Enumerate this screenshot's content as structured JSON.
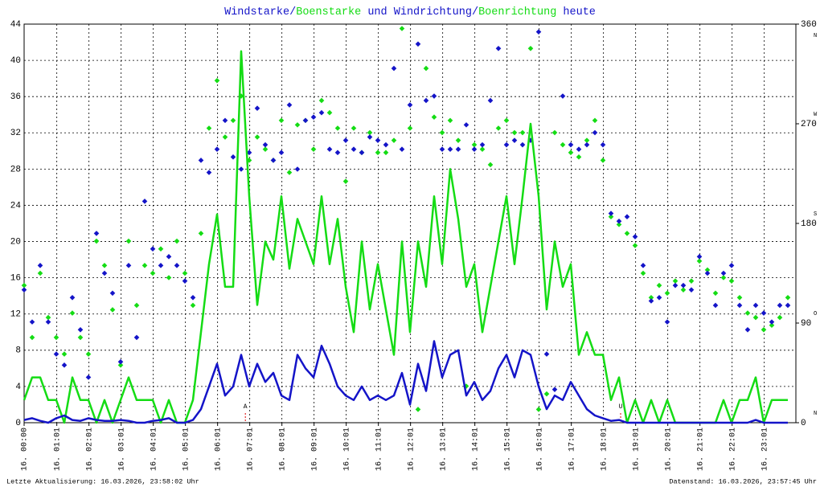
{
  "chart_data": {
    "type": "line",
    "title_parts": [
      {
        "text": "Windstarke/",
        "color": "#1414c8"
      },
      {
        "text": "Boenstarke",
        "color": "#14dc14"
      },
      {
        "text": " und ",
        "color": "#1414c8"
      },
      {
        "text": "Windrichtung/",
        "color": "#1414c8"
      },
      {
        "text": "Boenrichtung",
        "color": "#14dc14"
      },
      {
        "text": " heute",
        "color": "#1414c8"
      }
    ],
    "footer_left": "Letzte Aktualisierung: 16.03.2026, 23:58:02 Uhr",
    "footer_right": "Datenstand: 16.03.2026, 23:57:45 Uhr",
    "xlim": [
      0,
      24
    ],
    "xticks": [
      {
        "value": 0,
        "label": "16. 00:00"
      },
      {
        "value": 1.0167,
        "label": "16. 01:01"
      },
      {
        "value": 2.0167,
        "label": "16. 02:01"
      },
      {
        "value": 3.0167,
        "label": "16. 03:01"
      },
      {
        "value": 4.0167,
        "label": "16. 04:01"
      },
      {
        "value": 5.0167,
        "label": "16. 05:01"
      },
      {
        "value": 6.0167,
        "label": "16. 06:01"
      },
      {
        "value": 7.0167,
        "label": "16. 07:01"
      },
      {
        "value": 8.0167,
        "label": "16. 08:01"
      },
      {
        "value": 9.0167,
        "label": "16. 09:01"
      },
      {
        "value": 10.0167,
        "label": "16. 10:01"
      },
      {
        "value": 11.0167,
        "label": "16. 11:01"
      },
      {
        "value": 12.0167,
        "label": "16. 12:01"
      },
      {
        "value": 13.0167,
        "label": "16. 13:01"
      },
      {
        "value": 14.0167,
        "label": "16. 14:01"
      },
      {
        "value": 15.0167,
        "label": "16. 15:01"
      },
      {
        "value": 16.0167,
        "label": "16. 16:01"
      },
      {
        "value": 17.0167,
        "label": "16. 17:01"
      },
      {
        "value": 18.0167,
        "label": "16. 18:01"
      },
      {
        "value": 19.0167,
        "label": "16. 19:01"
      },
      {
        "value": 20.0167,
        "label": "16. 20:01"
      },
      {
        "value": 21.0167,
        "label": "16. 21:01"
      },
      {
        "value": 22.0167,
        "label": "16. 22:01"
      },
      {
        "value": 23.0167,
        "label": "16. 23:01"
      }
    ],
    "ylim": [
      0,
      44
    ],
    "yticks": [
      0,
      4,
      8,
      12,
      16,
      20,
      24,
      28,
      32,
      36,
      40,
      44
    ],
    "y2lim": [
      0,
      360
    ],
    "y2ticks": [
      0,
      90,
      180,
      270,
      360
    ],
    "y2tick_letters": [
      "N",
      "O",
      "S",
      "W",
      "N"
    ],
    "grid": true,
    "annotations": [
      {
        "x": 6.88,
        "label": "A",
        "color": "#dd0000"
      },
      {
        "x": 18.55,
        "label": "U",
        "color": "#dd0000"
      }
    ],
    "x": [
      0,
      0.25,
      0.5,
      0.75,
      1,
      1.25,
      1.5,
      1.75,
      2,
      2.25,
      2.5,
      2.75,
      3,
      3.25,
      3.5,
      3.75,
      4,
      4.25,
      4.5,
      4.75,
      5,
      5.25,
      5.5,
      5.75,
      6,
      6.25,
      6.5,
      6.75,
      7,
      7.25,
      7.5,
      7.75,
      8,
      8.25,
      8.5,
      8.75,
      9,
      9.25,
      9.5,
      9.75,
      10,
      10.25,
      10.5,
      10.75,
      11,
      11.25,
      11.5,
      11.75,
      12,
      12.25,
      12.5,
      12.75,
      13,
      13.25,
      13.5,
      13.75,
      14,
      14.25,
      14.5,
      14.75,
      15,
      15.25,
      15.5,
      15.75,
      16,
      16.25,
      16.5,
      16.75,
      17,
      17.25,
      17.5,
      17.75,
      18,
      18.25,
      18.5,
      18.75,
      19,
      19.25,
      19.5,
      19.75,
      20,
      20.25,
      20.5,
      20.75,
      21,
      21.25,
      21.5,
      21.75,
      22,
      22.25,
      22.5,
      22.75,
      23,
      23.25,
      23.5,
      23.75
    ],
    "series": [
      {
        "style": "line",
        "color": "#14dc14",
        "values": [
          2.5,
          5,
          5,
          2.5,
          2.5,
          0,
          5,
          2.5,
          2.5,
          0,
          2.5,
          0,
          2.5,
          5,
          2.5,
          2.5,
          2.5,
          0,
          2.5,
          0,
          0,
          2.5,
          10,
          17.5,
          23,
          15,
          15,
          41,
          25,
          13,
          20,
          18,
          25,
          17,
          22.5,
          20,
          17.5,
          25,
          17.5,
          22.5,
          15,
          10,
          20,
          12.5,
          17.5,
          12.5,
          7.5,
          20,
          10,
          20,
          15,
          25,
          17.5,
          28,
          22.5,
          15,
          17.5,
          10,
          15,
          20,
          25,
          17.5,
          25,
          33,
          25,
          12.5,
          20,
          15,
          17.5,
          7.5,
          10,
          7.5,
          7.5,
          2.5,
          5,
          0,
          2.5,
          0,
          2.5,
          0,
          2.5,
          0,
          0,
          0,
          0,
          0,
          0,
          2.5,
          0,
          2.5,
          2.5,
          5,
          0,
          2.5,
          2.5,
          2.5
        ]
      },
      {
        "style": "line",
        "color": "#1414c8",
        "values": [
          0.3,
          0.5,
          0.2,
          0,
          0.5,
          0.8,
          0.3,
          0.2,
          0.5,
          0.3,
          0.2,
          0.2,
          0.3,
          0.2,
          0,
          0,
          0.2,
          0.3,
          0.5,
          0,
          0,
          0.3,
          1.5,
          4,
          6.5,
          3,
          4,
          7.5,
          4,
          6.5,
          4.5,
          5.5,
          3,
          2.5,
          7.5,
          6,
          5,
          8.5,
          6.5,
          4,
          3,
          2.5,
          4,
          2.5,
          3,
          2.5,
          3,
          5.5,
          2,
          6.5,
          3.5,
          9,
          5,
          7.5,
          8,
          3,
          4.5,
          2.5,
          3.5,
          6,
          7.5,
          5,
          8,
          7.5,
          4,
          1.5,
          3,
          2.5,
          4.5,
          3,
          1.5,
          0.8,
          0.5,
          0.2,
          0.3,
          0,
          0,
          0,
          0,
          0,
          0,
          0,
          0,
          0,
          0,
          0,
          0,
          0,
          0,
          0,
          0,
          0.3,
          0,
          0,
          0,
          0
        ]
      },
      {
        "style": "points",
        "axis": "y2",
        "color": "#14dc14",
        "values": [
          124,
          77,
          135,
          95,
          77,
          62,
          99,
          77,
          62,
          164,
          142,
          102,
          52,
          164,
          106,
          142,
          135,
          157,
          131,
          164,
          135,
          106,
          171,
          266,
          309,
          258,
          273,
          295,
          237,
          258,
          247,
          237,
          273,
          226,
          269,
          273,
          247,
          291,
          280,
          266,
          218,
          266,
          244,
          262,
          244,
          244,
          255,
          356,
          266,
          12,
          320,
          276,
          262,
          273,
          255,
          33,
          251,
          247,
          233,
          266,
          273,
          262,
          262,
          338,
          12,
          26,
          262,
          251,
          244,
          240,
          255,
          273,
          237,
          186,
          179,
          171,
          160,
          135,
          113,
          124,
          117,
          128,
          120,
          128,
          146,
          138,
          117,
          131,
          128,
          113,
          99,
          95,
          84,
          88,
          95,
          113
        ]
      },
      {
        "style": "points",
        "axis": "y2",
        "color": "#1414c8",
        "values": [
          120,
          91,
          142,
          91,
          62,
          52,
          113,
          84,
          41,
          171,
          135,
          117,
          55,
          142,
          77,
          200,
          157,
          142,
          150,
          142,
          128,
          113,
          237,
          226,
          247,
          273,
          240,
          229,
          244,
          284,
          251,
          237,
          244,
          287,
          229,
          273,
          276,
          280,
          247,
          244,
          255,
          247,
          244,
          258,
          255,
          251,
          320,
          247,
          287,
          342,
          291,
          295,
          247,
          247,
          247,
          269,
          247,
          251,
          291,
          338,
          251,
          255,
          251,
          255,
          353,
          62,
          30,
          295,
          251,
          247,
          251,
          262,
          251,
          189,
          182,
          186,
          168,
          142,
          110,
          113,
          91,
          124,
          124,
          120,
          150,
          135,
          106,
          135,
          142,
          106,
          84,
          106,
          99,
          91,
          106,
          106
        ]
      }
    ]
  }
}
